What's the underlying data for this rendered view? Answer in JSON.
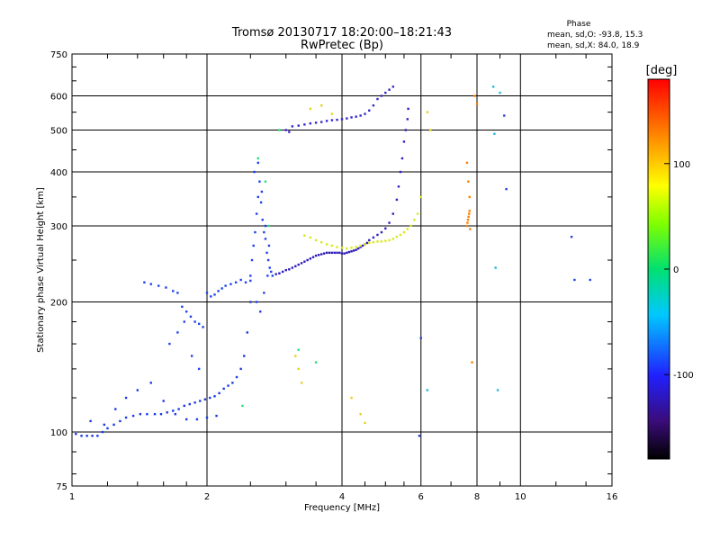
{
  "header": {
    "title_line1": "Tromsø 20130717 18:20:00–18:21:43",
    "title_line2": "RwPretec (Bp)"
  },
  "phase_stats": {
    "title": "Phase",
    "line1": "mean, sd,O: -93.8, 15.3",
    "line2": "mean, sd,X:  84.0, 18.9"
  },
  "chart_data": {
    "type": "scatter",
    "title": "Tromsø 20130717 18:20:00–18:21:43",
    "subtitle": "RwPretec (Bp)",
    "xlabel": "Frequency [MHz]",
    "ylabel": "Stationary phase Virtual Height [km]",
    "x_scale": "log",
    "y_scale": "log",
    "xlim": [
      1,
      16
    ],
    "ylim": [
      75,
      750
    ],
    "x_ticks": [
      1,
      2,
      4,
      6,
      8,
      10,
      16
    ],
    "x_tick_labels": [
      "1",
      "2",
      "4",
      "6",
      "8",
      "10",
      "16"
    ],
    "y_ticks": [
      75,
      100,
      200,
      300,
      400,
      500,
      600,
      750
    ],
    "y_tick_labels": [
      "75",
      "100",
      "200",
      "300",
      "400",
      "500",
      "600",
      "750"
    ],
    "grid": true,
    "colorbar": {
      "label": "[deg]",
      "range": [
        -180,
        180
      ],
      "ticks": [
        100,
        0,
        -100
      ],
      "tick_labels": [
        "100",
        "0",
        "-100"
      ]
    },
    "series": [
      {
        "color": "#1a3ae6",
        "phase": -100,
        "x": [
          1.02,
          1.05,
          1.08,
          1.11,
          1.14,
          1.17,
          1.2,
          1.24,
          1.28,
          1.32,
          1.37,
          1.42,
          1.47,
          1.53,
          1.58,
          1.63,
          1.68,
          1.73,
          1.78,
          1.83,
          1.88,
          1.93,
          1.98,
          2.03,
          2.08,
          2.13,
          2.18,
          2.23,
          2.28,
          2.33,
          2.38,
          2.42,
          2.46,
          2.5,
          1.1,
          1.18,
          1.25,
          1.32,
          1.4,
          1.5,
          1.6,
          1.7,
          1.8,
          1.9,
          2.0,
          2.1
        ],
        "y": [
          99,
          98,
          98,
          98,
          98,
          100,
          102,
          104,
          106,
          108,
          109,
          110,
          110,
          110,
          110,
          111,
          112,
          113,
          115,
          116,
          117,
          118,
          119,
          120,
          121,
          123,
          126,
          128,
          130,
          134,
          140,
          150,
          170,
          200,
          106,
          104,
          113,
          120,
          125,
          130,
          118,
          110,
          107,
          107,
          108,
          109
        ]
      },
      {
        "color": "#1e44ee",
        "phase": -95,
        "x": [
          1.45,
          1.5,
          1.56,
          1.62,
          1.68,
          1.72,
          1.76,
          1.8,
          1.84,
          1.88,
          1.92,
          1.96,
          2.0,
          2.04,
          2.08,
          2.12,
          2.16,
          2.2,
          2.26,
          2.32,
          2.38,
          2.44,
          2.5,
          1.65,
          1.72,
          1.78,
          1.85,
          1.92
        ],
        "y": [
          222,
          220,
          218,
          216,
          212,
          210,
          195,
          190,
          185,
          180,
          178,
          175,
          210,
          206,
          208,
          212,
          215,
          218,
          220,
          222,
          225,
          222,
          224,
          160,
          170,
          180,
          150,
          140
        ]
      },
      {
        "color": "#2040f0",
        "phase": -98,
        "x": [
          2.5,
          2.52,
          2.54,
          2.56,
          2.58,
          2.6,
          2.62,
          2.64,
          2.66,
          2.68,
          2.7,
          2.72,
          2.74,
          2.76,
          2.78,
          2.8,
          2.55,
          2.6,
          2.65,
          2.7,
          2.75,
          2.58,
          2.63,
          2.68,
          2.73
        ],
        "y": [
          230,
          250,
          270,
          290,
          320,
          350,
          380,
          340,
          310,
          290,
          280,
          260,
          250,
          240,
          235,
          230,
          400,
          420,
          360,
          300,
          270,
          200,
          190,
          210,
          230
        ]
      },
      {
        "color": "#2b1ab8",
        "phase": -110,
        "x": [
          2.85,
          2.9,
          2.95,
          3.0,
          3.05,
          3.1,
          3.15,
          3.2,
          3.25,
          3.3,
          3.35,
          3.4,
          3.45,
          3.5,
          3.55,
          3.6,
          3.65,
          3.7,
          3.75,
          3.8,
          3.85,
          3.9,
          3.95,
          4.0,
          4.05,
          4.1,
          4.15,
          4.2,
          4.25,
          4.3,
          4.35,
          4.4,
          4.45,
          4.5,
          4.55
        ],
        "y": [
          232,
          233,
          235,
          237,
          238,
          240,
          242,
          244,
          246,
          248,
          250,
          252,
          254,
          256,
          257,
          258,
          259,
          260,
          260,
          260,
          260,
          260,
          260,
          259,
          259,
          260,
          261,
          262,
          263,
          264,
          266,
          268,
          270,
          272,
          274
        ]
      },
      {
        "color": "#3020c0",
        "phase": -105,
        "x": [
          4.6,
          4.7,
          4.8,
          4.9,
          5.0,
          5.1,
          5.2,
          5.3,
          5.35,
          5.4,
          5.45,
          5.5,
          5.55,
          5.6,
          5.62
        ],
        "y": [
          278,
          282,
          286,
          290,
          296,
          305,
          320,
          345,
          370,
          400,
          430,
          470,
          500,
          530,
          560
        ]
      },
      {
        "color": "#3328c8",
        "phase": -100,
        "x": [
          3.1,
          3.2,
          3.3,
          3.4,
          3.5,
          3.6,
          3.7,
          3.8,
          3.9,
          4.0,
          4.1,
          4.2,
          4.3,
          4.4,
          4.5,
          4.6,
          4.7,
          4.8,
          4.9,
          5.0,
          5.1,
          5.2,
          3.0,
          3.05
        ],
        "y": [
          510,
          512,
          515,
          518,
          520,
          522,
          525,
          527,
          528,
          530,
          532,
          535,
          537,
          540,
          545,
          555,
          570,
          590,
          600,
          610,
          620,
          630,
          500,
          495
        ]
      },
      {
        "color": "#d8e81a",
        "phase": 95,
        "x": [
          3.3,
          3.4,
          3.5,
          3.6,
          3.7,
          3.8,
          3.9,
          4.0,
          4.1,
          4.2,
          4.3,
          4.4,
          4.5,
          4.6,
          4.7,
          4.8,
          4.9,
          5.0,
          5.1,
          5.2,
          5.3,
          5.4,
          5.5,
          5.6,
          5.7,
          5.8,
          5.9,
          6.0
        ],
        "y": [
          285,
          282,
          278,
          275,
          272,
          270,
          268,
          267,
          266,
          267,
          268,
          270,
          272,
          274,
          275,
          276,
          276,
          277,
          278,
          280,
          283,
          286,
          290,
          295,
          300,
          310,
          320,
          350
        ]
      },
      {
        "color": "#e8d020",
        "phase": 110,
        "x": [
          3.4,
          3.6,
          3.8,
          4.4,
          4.5,
          3.15,
          3.2,
          3.25,
          4.2,
          6.2,
          6.3
        ],
        "y": [
          560,
          570,
          545,
          110,
          105,
          150,
          140,
          130,
          120,
          550,
          500
        ]
      },
      {
        "color": "#ff7f00",
        "phase": 150,
        "x": [
          7.6,
          7.62,
          7.64,
          7.66,
          7.68,
          7.7,
          7.72,
          7.6,
          7.65,
          7.7,
          7.9,
          8.0,
          7.8
        ],
        "y": [
          300,
          305,
          310,
          315,
          320,
          325,
          295,
          420,
          380,
          350,
          600,
          575,
          145
        ]
      },
      {
        "color": "#28e080",
        "phase": 30,
        "x": [
          2.6,
          2.7,
          2.9,
          3.2,
          3.5,
          2.4,
          2.75
        ],
        "y": [
          430,
          380,
          500,
          155,
          145,
          115,
          300
        ]
      },
      {
        "color": "#20b8e0",
        "phase": -40,
        "x": [
          8.7,
          8.75,
          8.8,
          8.9,
          6.2,
          9.0
        ],
        "y": [
          630,
          490,
          240,
          125,
          125,
          610
        ]
      },
      {
        "color": "#2840d8",
        "phase": -95,
        "x": [
          9.2,
          9.3,
          13.0,
          13.2,
          14.3,
          6.0,
          5.95
        ],
        "y": [
          540,
          365,
          283,
          225,
          225,
          165,
          98
        ]
      }
    ]
  }
}
